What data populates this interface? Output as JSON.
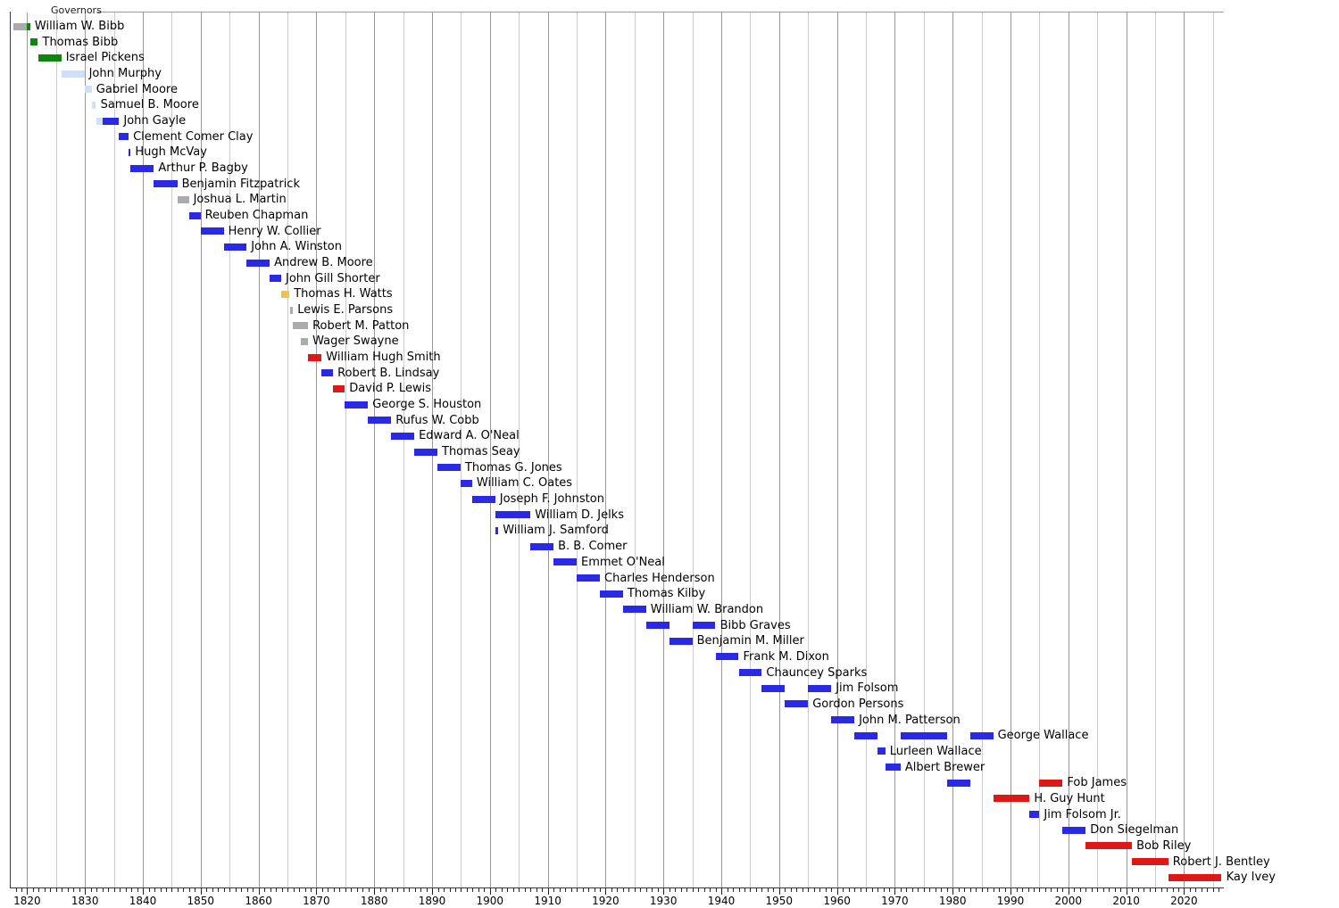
{
  "chart_data": {
    "type": "timeline",
    "title": "Governors",
    "subtitle": "",
    "legend": "none",
    "grid": "on",
    "x_axis": {
      "unit": "year",
      "range_start": 1817,
      "range_end": 2026.8,
      "minor_tick_interval": 1,
      "gridline_interval": 5,
      "label_interval": 10,
      "decade_labels": [
        "1820",
        "1830",
        "1840",
        "1850",
        "1860",
        "1870",
        "1880",
        "1890",
        "1900",
        "1910",
        "1920",
        "1930",
        "1940",
        "1950",
        "1960",
        "1970",
        "1980",
        "1990",
        "2000",
        "2010",
        "2020"
      ]
    },
    "party_colors": {
      "gray": "#ABABAB",
      "green": "#0F840F",
      "lightblue": "#CFE0F6",
      "blue": "#2A2AE6",
      "red": "#DE1717",
      "gold": "#E9C353"
    },
    "governors": [
      {
        "name": "William W. Bibb",
        "terms": [
          {
            "start": 1817.55,
            "end": 1819.86,
            "color": "gray"
          },
          {
            "start": 1819.86,
            "end": 1820.53,
            "color": "green"
          }
        ]
      },
      {
        "name": "Thomas Bibb",
        "terms": [
          {
            "start": 1820.53,
            "end": 1821.86,
            "color": "green"
          }
        ]
      },
      {
        "name": "Israel Pickens",
        "terms": [
          {
            "start": 1821.86,
            "end": 1825.9,
            "color": "green"
          }
        ]
      },
      {
        "name": "John Murphy",
        "terms": [
          {
            "start": 1825.9,
            "end": 1829.9,
            "color": "lightblue"
          }
        ]
      },
      {
        "name": "Gabriel Moore",
        "terms": [
          {
            "start": 1829.9,
            "end": 1831.17,
            "color": "lightblue"
          }
        ]
      },
      {
        "name": "Samuel B. Moore",
        "terms": [
          {
            "start": 1831.17,
            "end": 1831.9,
            "color": "lightblue"
          }
        ]
      },
      {
        "name": "John Gayle",
        "terms": [
          {
            "start": 1831.9,
            "end": 1833.0,
            "color": "lightblue"
          },
          {
            "start": 1833.0,
            "end": 1835.89,
            "color": "blue"
          }
        ]
      },
      {
        "name": "Clement Comer Clay",
        "terms": [
          {
            "start": 1835.89,
            "end": 1837.54,
            "color": "blue"
          }
        ]
      },
      {
        "name": "Hugh McVay",
        "terms": [
          {
            "start": 1837.54,
            "end": 1837.89,
            "color": "blue"
          }
        ]
      },
      {
        "name": "Arthur P. Bagby",
        "terms": [
          {
            "start": 1837.89,
            "end": 1841.9,
            "color": "blue"
          }
        ]
      },
      {
        "name": "Benjamin Fitzpatrick",
        "terms": [
          {
            "start": 1841.9,
            "end": 1845.95,
            "color": "blue"
          }
        ]
      },
      {
        "name": "Joshua L. Martin",
        "terms": [
          {
            "start": 1845.95,
            "end": 1847.96,
            "color": "gray"
          }
        ]
      },
      {
        "name": "Reuben Chapman",
        "terms": [
          {
            "start": 1847.96,
            "end": 1849.96,
            "color": "blue"
          }
        ]
      },
      {
        "name": "Henry W. Collier",
        "terms": [
          {
            "start": 1849.96,
            "end": 1853.97,
            "color": "blue"
          }
        ]
      },
      {
        "name": "John A. Winston",
        "terms": [
          {
            "start": 1853.97,
            "end": 1857.92,
            "color": "blue"
          }
        ]
      },
      {
        "name": "Andrew B. Moore",
        "terms": [
          {
            "start": 1857.92,
            "end": 1861.92,
            "color": "blue"
          }
        ]
      },
      {
        "name": "John Gill Shorter",
        "terms": [
          {
            "start": 1861.92,
            "end": 1863.92,
            "color": "blue"
          }
        ]
      },
      {
        "name": "Thomas H. Watts",
        "terms": [
          {
            "start": 1863.92,
            "end": 1865.33,
            "color": "gold"
          }
        ]
      },
      {
        "name": "Lewis E. Parsons",
        "terms": [
          {
            "start": 1865.47,
            "end": 1865.95,
            "color": "gray"
          }
        ]
      },
      {
        "name": "Robert M. Patton",
        "terms": [
          {
            "start": 1865.95,
            "end": 1868.56,
            "color": "gray"
          }
        ]
      },
      {
        "name": "Wager Swayne",
        "terms": [
          {
            "start": 1867.3,
            "end": 1868.56,
            "color": "gray"
          }
        ]
      },
      {
        "name": "William Hugh Smith",
        "terms": [
          {
            "start": 1868.56,
            "end": 1870.9,
            "color": "red"
          }
        ]
      },
      {
        "name": "Robert B. Lindsay",
        "terms": [
          {
            "start": 1870.9,
            "end": 1872.88,
            "color": "blue"
          }
        ]
      },
      {
        "name": "David P. Lewis",
        "terms": [
          {
            "start": 1872.88,
            "end": 1874.9,
            "color": "red"
          }
        ]
      },
      {
        "name": "George S. Houston",
        "terms": [
          {
            "start": 1874.9,
            "end": 1878.91,
            "color": "blue"
          }
        ]
      },
      {
        "name": "Rufus W. Cobb",
        "terms": [
          {
            "start": 1878.91,
            "end": 1882.92,
            "color": "blue"
          }
        ]
      },
      {
        "name": "Edward A. O'Neal",
        "terms": [
          {
            "start": 1882.92,
            "end": 1886.92,
            "color": "blue"
          }
        ]
      },
      {
        "name": "Thomas Seay",
        "terms": [
          {
            "start": 1886.92,
            "end": 1890.92,
            "color": "blue"
          }
        ]
      },
      {
        "name": "Thomas G. Jones",
        "terms": [
          {
            "start": 1890.92,
            "end": 1894.92,
            "color": "blue"
          }
        ]
      },
      {
        "name": "William C. Oates",
        "terms": [
          {
            "start": 1894.92,
            "end": 1896.92,
            "color": "blue"
          }
        ]
      },
      {
        "name": "Joseph F. Johnston",
        "terms": [
          {
            "start": 1896.92,
            "end": 1900.92,
            "color": "blue"
          }
        ]
      },
      {
        "name": "William D. Jelks",
        "terms": [
          {
            "start": 1900.92,
            "end": 1907.0,
            "color": "blue"
          }
        ]
      },
      {
        "name": "William J. Samford",
        "terms": [
          {
            "start": 1900.98,
            "end": 1901.44,
            "color": "blue"
          }
        ]
      },
      {
        "name": "B. B. Comer",
        "terms": [
          {
            "start": 1907.0,
            "end": 1911.0,
            "color": "blue"
          }
        ]
      },
      {
        "name": "Emmet O'Neal",
        "terms": [
          {
            "start": 1911.0,
            "end": 1915.0,
            "color": "blue"
          }
        ]
      },
      {
        "name": "Charles Henderson",
        "terms": [
          {
            "start": 1915.0,
            "end": 1919.0,
            "color": "blue"
          }
        ]
      },
      {
        "name": "Thomas Kilby",
        "terms": [
          {
            "start": 1919.0,
            "end": 1923.0,
            "color": "blue"
          }
        ]
      },
      {
        "name": "William W. Brandon",
        "terms": [
          {
            "start": 1923.0,
            "end": 1927.0,
            "color": "blue"
          }
        ]
      },
      {
        "name": "Bibb Graves",
        "terms": [
          {
            "start": 1927.0,
            "end": 1931.0,
            "color": "blue"
          },
          {
            "start": 1935.0,
            "end": 1939.0,
            "color": "blue"
          }
        ]
      },
      {
        "name": "Benjamin M. Miller",
        "terms": [
          {
            "start": 1931.0,
            "end": 1935.0,
            "color": "blue"
          }
        ]
      },
      {
        "name": "Frank M. Dixon",
        "terms": [
          {
            "start": 1939.0,
            "end": 1943.0,
            "color": "blue"
          }
        ]
      },
      {
        "name": "Chauncey Sparks",
        "terms": [
          {
            "start": 1943.0,
            "end": 1947.0,
            "color": "blue"
          }
        ]
      },
      {
        "name": "Jim Folsom",
        "terms": [
          {
            "start": 1947.0,
            "end": 1951.0,
            "color": "blue"
          },
          {
            "start": 1955.0,
            "end": 1959.0,
            "color": "blue"
          }
        ]
      },
      {
        "name": "Gordon Persons",
        "terms": [
          {
            "start": 1951.0,
            "end": 1955.0,
            "color": "blue"
          }
        ]
      },
      {
        "name": "John M. Patterson",
        "terms": [
          {
            "start": 1959.0,
            "end": 1963.0,
            "color": "blue"
          }
        ]
      },
      {
        "name": "George Wallace",
        "terms": [
          {
            "start": 1963.0,
            "end": 1967.0,
            "color": "blue"
          },
          {
            "start": 1971.0,
            "end": 1979.0,
            "color": "blue"
          },
          {
            "start": 1983.0,
            "end": 1987.0,
            "color": "blue"
          }
        ]
      },
      {
        "name": "Lurleen Wallace",
        "terms": [
          {
            "start": 1967.0,
            "end": 1968.35,
            "color": "blue"
          }
        ]
      },
      {
        "name": "Albert Brewer",
        "terms": [
          {
            "start": 1968.35,
            "end": 1971.0,
            "color": "blue"
          }
        ]
      },
      {
        "name": "Fob James",
        "terms": [
          {
            "start": 1979.0,
            "end": 1983.0,
            "color": "blue"
          },
          {
            "start": 1995.0,
            "end": 1999.0,
            "color": "red"
          }
        ]
      },
      {
        "name": "H. Guy Hunt",
        "terms": [
          {
            "start": 1987.0,
            "end": 1993.3,
            "color": "red"
          }
        ]
      },
      {
        "name": "Jim Folsom Jr.",
        "terms": [
          {
            "start": 1993.3,
            "end": 1995.0,
            "color": "blue"
          }
        ]
      },
      {
        "name": "Don Siegelman",
        "terms": [
          {
            "start": 1999.0,
            "end": 2003.0,
            "color": "blue"
          }
        ]
      },
      {
        "name": "Bob Riley",
        "terms": [
          {
            "start": 2003.0,
            "end": 2011.0,
            "color": "red"
          }
        ]
      },
      {
        "name": "Robert J. Bentley",
        "terms": [
          {
            "start": 2011.0,
            "end": 2017.28,
            "color": "red"
          }
        ]
      },
      {
        "name": "Kay Ivey",
        "terms": [
          {
            "start": 2017.28,
            "end": 2026.5,
            "color": "red"
          }
        ]
      }
    ]
  }
}
